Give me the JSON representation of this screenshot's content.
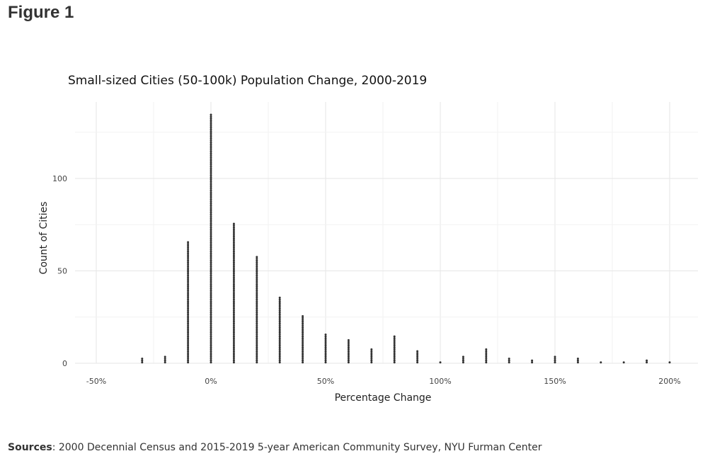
{
  "figure_label": "Figure 1",
  "sources": {
    "label": "Sources",
    "text": ": 2000 Decennial Census and 2015-2019 5-year American Community Survey, NYU Furman Center"
  },
  "chart_data": {
    "type": "dotplot",
    "title": "Small-sized Cities (50-100k) Population Change, 2000-2019",
    "xlabel": "Percentage Change",
    "ylabel": "Count of Cities",
    "xlim": [
      -60,
      212
    ],
    "ylim": [
      0,
      140
    ],
    "x_ticks": [
      -50,
      0,
      50,
      100,
      150,
      200
    ],
    "x_tick_labels": [
      "-50%",
      "0%",
      "50%",
      "100%",
      "150%",
      "200%"
    ],
    "y_ticks": [
      0,
      50,
      100
    ],
    "y_tick_labels": [
      "0",
      "50",
      "100"
    ],
    "grid": true,
    "dot_color": "#333333",
    "x": [
      -30,
      -20,
      -10,
      0,
      10,
      20,
      30,
      40,
      50,
      60,
      70,
      80,
      90,
      100,
      110,
      120,
      130,
      140,
      150,
      160,
      170,
      180,
      190,
      200
    ],
    "counts": [
      3,
      4,
      66,
      135,
      76,
      58,
      36,
      26,
      16,
      13,
      8,
      15,
      7,
      1,
      4,
      8,
      3,
      2,
      4,
      3,
      1,
      1,
      2,
      1
    ]
  }
}
